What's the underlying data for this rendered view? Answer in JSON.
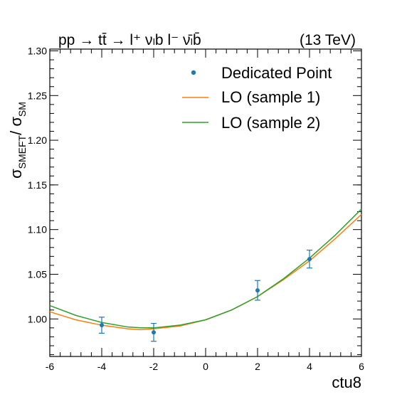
{
  "chart_data": {
    "type": "line",
    "title_left": "pp → tt̄ → l⁺ νₗb  l⁻ ν̄ₗb̄",
    "title_right": "(13 TeV)",
    "xlabel": "ctu8",
    "ylabel_main": "σ",
    "ylabel_sub1": "SMEFT",
    "ylabel_slash": "/ σ",
    "ylabel_sub2": "SM",
    "xlim": [
      -6,
      6
    ],
    "ylim": [
      0.958,
      1.302
    ],
    "x_ticks": [
      -6,
      -4,
      -2,
      0,
      2,
      4,
      6
    ],
    "x_tick_labels": [
      "-6",
      "-4",
      "-2",
      "0",
      "2",
      "4",
      "6"
    ],
    "y_ticks": [
      1.0,
      1.05,
      1.1,
      1.15,
      1.2,
      1.25,
      1.3
    ],
    "y_tick_labels": [
      "1.00",
      "1.05",
      "1.10",
      "1.15",
      "1.20",
      "1.25",
      "1.30"
    ],
    "grid": false,
    "legend_position": "top-right",
    "series": [
      {
        "name": "Dedicated Point",
        "kind": "points",
        "color": "#1f77b4",
        "x": [
          -4,
          -2,
          2,
          4
        ],
        "y": [
          0.993,
          0.985,
          1.032,
          1.067
        ],
        "err": [
          0.009,
          0.01,
          0.011,
          0.01
        ]
      },
      {
        "name": "LO (sample 1)",
        "kind": "line",
        "color": "#ff7f0e",
        "x": [
          -6,
          -5,
          -4,
          -3,
          -2.5,
          -2,
          -1,
          0,
          1,
          2,
          3,
          4,
          5,
          6
        ],
        "y": [
          1.008,
          0.999,
          0.993,
          0.989,
          0.988,
          0.989,
          0.992,
          0.999,
          1.01,
          1.025,
          1.044,
          1.065,
          1.09,
          1.117
        ]
      },
      {
        "name": "LO (sample 2)",
        "kind": "line",
        "color": "#2ca02c",
        "x": [
          -6,
          -5,
          -4,
          -3,
          -2.5,
          -2,
          -1,
          0,
          1,
          2,
          3,
          4,
          5,
          6
        ],
        "y": [
          1.015,
          1.004,
          0.996,
          0.991,
          0.99,
          0.99,
          0.993,
          0.999,
          1.01,
          1.025,
          1.045,
          1.068,
          1.094,
          1.123
        ]
      }
    ]
  }
}
